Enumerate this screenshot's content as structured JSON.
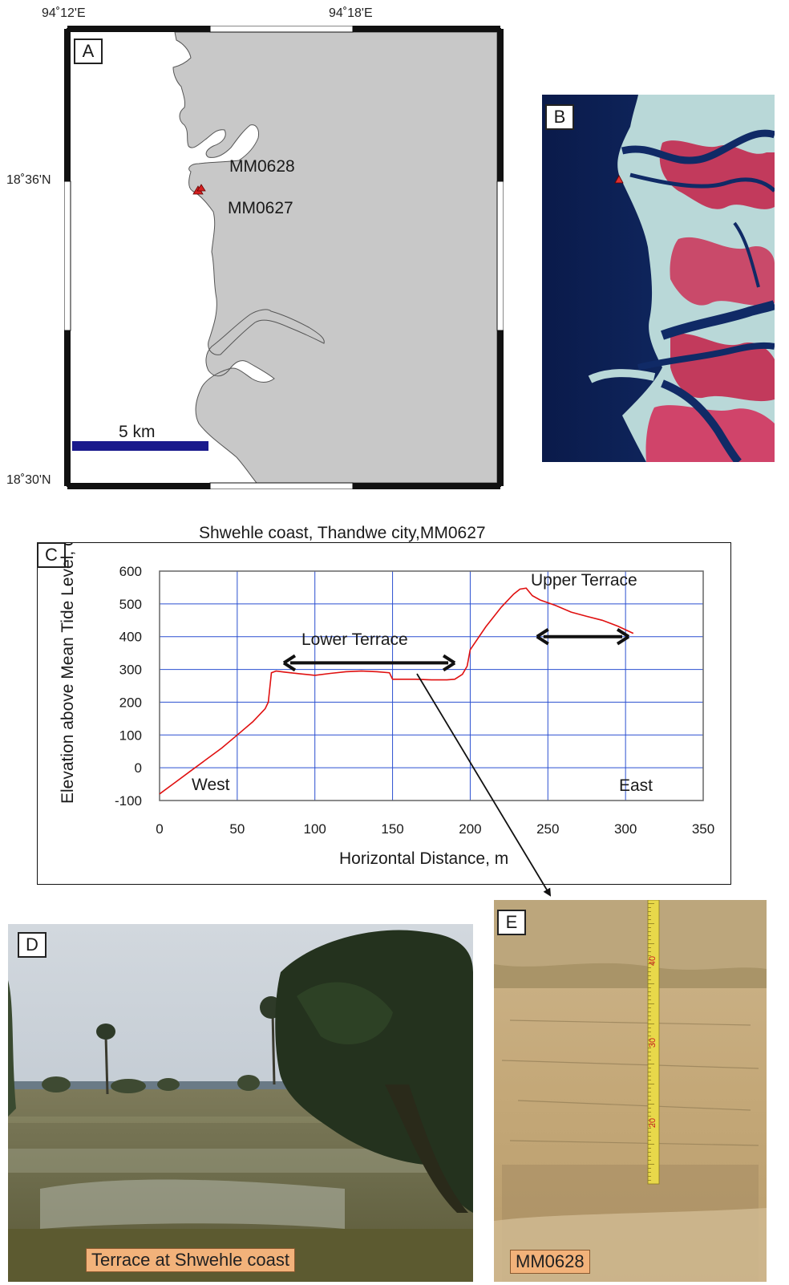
{
  "panel_a": {
    "letter": "A",
    "lon_labels": [
      "94˚12'E",
      "94˚18'E"
    ],
    "lat_labels": [
      "18˚36'N",
      "18˚30'N"
    ],
    "sites": [
      "MM0628",
      "MM0627"
    ],
    "scale_label": "5 km",
    "colors": {
      "land": "#c8c8c8",
      "water": "#ffffff",
      "scale_bar": "#1a1a8c",
      "site_marker": "#d42020"
    }
  },
  "panel_b": {
    "letter": "B"
  },
  "panel_c": {
    "letter": "C",
    "caption": "Shwehle coast, Thandwe city,MM0627",
    "annotations": {
      "lower": "Lower Terrace",
      "upper": "Upper Terrace",
      "west": "West",
      "east": "East"
    }
  },
  "panel_d": {
    "letter": "D",
    "caption": "Terrace at Shwehle coast"
  },
  "panel_e": {
    "letter": "E",
    "caption": "MM0628",
    "tape_marks": [
      "40",
      "30",
      "20"
    ]
  },
  "chart_data": {
    "type": "line",
    "title": "Shwehle coast, Thandwe city,MM0627",
    "xlabel": "Horizontal Distance, m",
    "ylabel": "Elevation above Mean Tide Level, cm",
    "xlim": [
      0,
      350
    ],
    "ylim": [
      -100,
      600
    ],
    "x_ticks": [
      "0",
      "50",
      "100",
      "150",
      "200",
      "250",
      "300",
      "350"
    ],
    "y_ticks": [
      "600",
      "500",
      "400",
      "300",
      "200",
      "100",
      "0",
      "-100"
    ],
    "grid": true,
    "line_color": "#e01010",
    "series": [
      {
        "x": [
          0,
          10,
          20,
          30,
          40,
          50,
          60,
          68,
          70,
          72,
          75,
          80,
          90,
          100,
          110,
          120,
          130,
          140,
          148,
          150,
          155,
          165,
          175,
          185,
          190,
          195,
          198,
          200,
          210,
          220,
          228,
          232,
          236,
          240,
          245,
          255,
          265,
          275,
          285,
          295,
          305
        ],
        "y": [
          -80,
          -45,
          -10,
          25,
          60,
          100,
          140,
          180,
          200,
          290,
          295,
          292,
          287,
          282,
          288,
          293,
          295,
          293,
          290,
          270,
          270,
          270,
          268,
          268,
          270,
          285,
          310,
          360,
          430,
          490,
          530,
          545,
          548,
          525,
          512,
          495,
          475,
          462,
          450,
          432,
          410
        ]
      }
    ],
    "arrows": [
      {
        "label": "Lower Terrace",
        "x_from": 80,
        "x_to": 190,
        "y": 320
      },
      {
        "label": "Upper Terrace",
        "x_from": 243,
        "x_to": 302,
        "y": 400
      }
    ]
  }
}
